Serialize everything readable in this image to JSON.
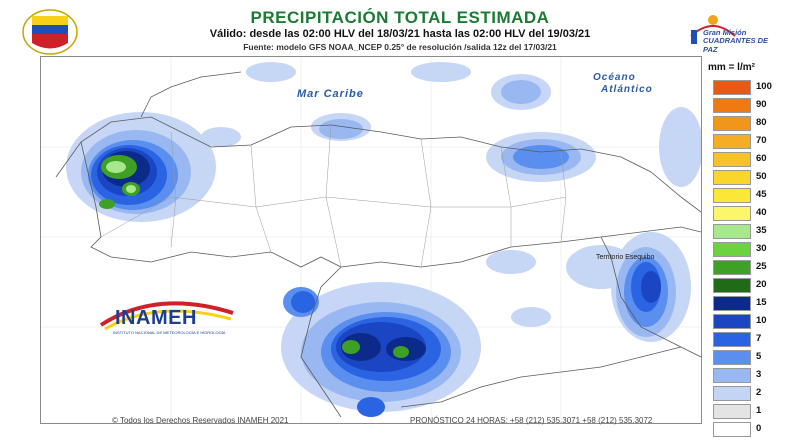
{
  "header": {
    "title": "PRECIPITACIÓN TOTAL ESTIMADA",
    "subtitle": "Válido: desde las 02:00 HLV del 18/03/21 hasta las 02:00 HLV del 19/03/21",
    "source": "Fuente: modelo GFS NOAA_NCEP 0.25° de resolución /salida 12z del 17/03/21"
  },
  "logo_right": {
    "line1": "Gran Misión",
    "line2": "CUADRANTES DE PAZ"
  },
  "map": {
    "labels": {
      "sea": "Mar Caribe",
      "ocean_line1": "Océano",
      "ocean_line2": "Atlántico",
      "territory": "Territorio Esequibo"
    }
  },
  "inameh_logo": {
    "name": "INAMEH",
    "subtitle": "INSTITUTO NACIONAL DE METEOROLOGÍA E HIDROLOGÍA"
  },
  "footer": {
    "copyright": "© Todos los Derechos Reservados INAMEH 2021",
    "forecast": "PRONÓSTICO 24 HORAS: +58 (212) 535.3071 +58 (212) 535.3072"
  },
  "legend": {
    "title": "mm = l/m²",
    "items": [
      {
        "value": "100",
        "color": "#e85a14"
      },
      {
        "value": "90",
        "color": "#ef7a12"
      },
      {
        "value": "80",
        "color": "#f1961a"
      },
      {
        "value": "70",
        "color": "#f4ad25"
      },
      {
        "value": "60",
        "color": "#f7c32a"
      },
      {
        "value": "50",
        "color": "#fad52c"
      },
      {
        "value": "45",
        "color": "#fbe737"
      },
      {
        "value": "40",
        "color": "#fcf66a"
      },
      {
        "value": "35",
        "color": "#a8e88c"
      },
      {
        "value": "30",
        "color": "#6bd33f"
      },
      {
        "value": "25",
        "color": "#3ea024"
      },
      {
        "value": "20",
        "color": "#1f6b17"
      },
      {
        "value": "15",
        "color": "#0b2a8a"
      },
      {
        "value": "10",
        "color": "#1a46c4"
      },
      {
        "value": "7",
        "color": "#2a64e3"
      },
      {
        "value": "5",
        "color": "#5b8fef"
      },
      {
        "value": "3",
        "color": "#99b8f2"
      },
      {
        "value": "2",
        "color": "#c4d4f5"
      },
      {
        "value": "1",
        "color": "#e4e4e4"
      },
      {
        "value": "0",
        "color": "#ffffff"
      }
    ]
  }
}
